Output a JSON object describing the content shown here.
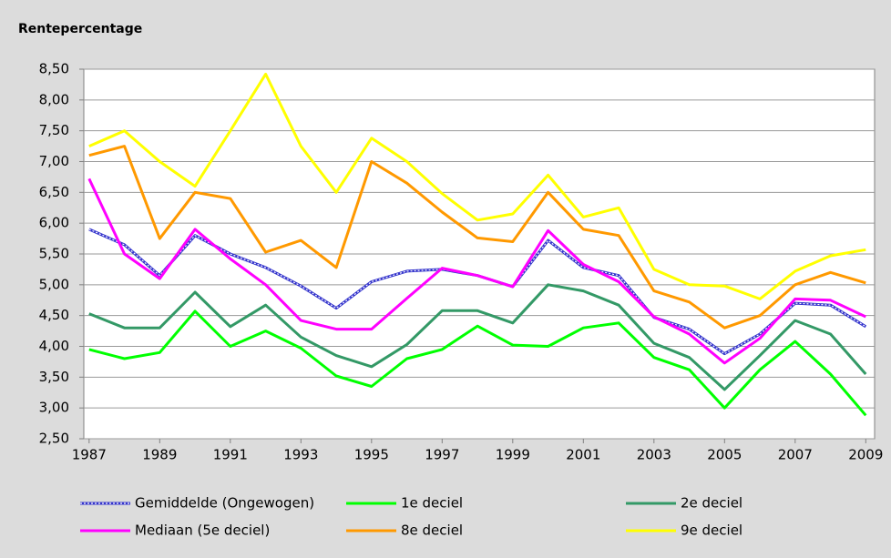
{
  "chart_data": {
    "type": "line",
    "title": "Rentepercentage",
    "x": [
      1987,
      1988,
      1989,
      1990,
      1991,
      1992,
      1993,
      1994,
      1995,
      1996,
      1997,
      1998,
      1999,
      2000,
      2001,
      2002,
      2003,
      2004,
      2005,
      2006,
      2007,
      2008,
      2009
    ],
    "xlim": [
      1986.85,
      2009.25
    ],
    "xticks": [
      1987,
      1989,
      1991,
      1993,
      1995,
      1997,
      1999,
      2001,
      2003,
      2005,
      2007,
      2009
    ],
    "ylim": [
      2.5,
      8.5
    ],
    "yticks": [
      {
        "value": 2.5,
        "label": "2,50"
      },
      {
        "value": 3,
        "label": "3,00"
      },
      {
        "value": 3.5,
        "label": "3,50"
      },
      {
        "value": 4,
        "label": "4,00"
      },
      {
        "value": 4.5,
        "label": "4,50"
      },
      {
        "value": 5,
        "label": "5,00"
      },
      {
        "value": 5.5,
        "label": "5,50"
      },
      {
        "value": 6,
        "label": "6,00"
      },
      {
        "value": 6.5,
        "label": "6,50"
      },
      {
        "value": 7,
        "label": "7,00"
      },
      {
        "value": 7.5,
        "label": "7,50"
      },
      {
        "value": 8,
        "label": "8,00"
      },
      {
        "value": 8.5,
        "label": "8,50"
      }
    ],
    "grid": true,
    "legend_position": "bottom",
    "series": [
      {
        "name": "Gemiddelde (Ongewogen)",
        "color": "#3333cc",
        "dashed": true,
        "values": [
          5.9,
          5.65,
          5.15,
          5.8,
          5.5,
          5.28,
          4.98,
          4.62,
          5.05,
          5.22,
          5.25,
          5.15,
          4.97,
          5.72,
          5.28,
          5.15,
          4.47,
          4.28,
          3.88,
          4.2,
          4.7,
          4.67,
          4.32
        ]
      },
      {
        "name": "1e deciel",
        "color": "#00ff00",
        "values": [
          3.95,
          3.8,
          3.9,
          4.57,
          4.0,
          4.25,
          3.97,
          3.52,
          3.35,
          3.8,
          3.95,
          4.33,
          4.02,
          4.0,
          4.3,
          4.38,
          3.82,
          3.62,
          3.0,
          3.62,
          4.08,
          3.55,
          2.88
        ]
      },
      {
        "name": "2e deciel",
        "color": "#339966",
        "values": [
          4.53,
          4.3,
          4.3,
          4.88,
          4.32,
          4.67,
          4.15,
          3.85,
          3.67,
          4.03,
          4.58,
          4.58,
          4.38,
          5.0,
          4.9,
          4.67,
          4.05,
          3.82,
          3.3,
          3.85,
          4.42,
          4.2,
          3.55
        ]
      },
      {
        "name": "Mediaan (5e deciel)",
        "color": "#ff00ff",
        "values": [
          6.72,
          5.5,
          5.1,
          5.9,
          5.42,
          5.0,
          4.42,
          4.28,
          4.28,
          4.78,
          5.27,
          5.15,
          4.97,
          5.88,
          5.33,
          5.05,
          4.48,
          4.2,
          3.73,
          4.13,
          4.77,
          4.75,
          4.48
        ]
      },
      {
        "name": "8e deciel",
        "color": "#ff9900",
        "values": [
          7.1,
          7.25,
          5.75,
          6.5,
          6.4,
          5.53,
          5.72,
          5.28,
          7.0,
          6.65,
          6.18,
          5.76,
          5.7,
          6.5,
          5.9,
          5.8,
          4.9,
          4.72,
          4.3,
          4.5,
          5.0,
          5.2,
          5.03
        ]
      },
      {
        "name": "9e deciel",
        "color": "#ffff00",
        "values": [
          7.25,
          7.5,
          7.0,
          6.6,
          7.5,
          8.42,
          7.25,
          6.5,
          7.38,
          7.0,
          6.48,
          6.05,
          6.15,
          6.78,
          6.1,
          6.25,
          5.25,
          5.0,
          4.98,
          4.77,
          5.22,
          5.47,
          5.57
        ]
      }
    ]
  }
}
